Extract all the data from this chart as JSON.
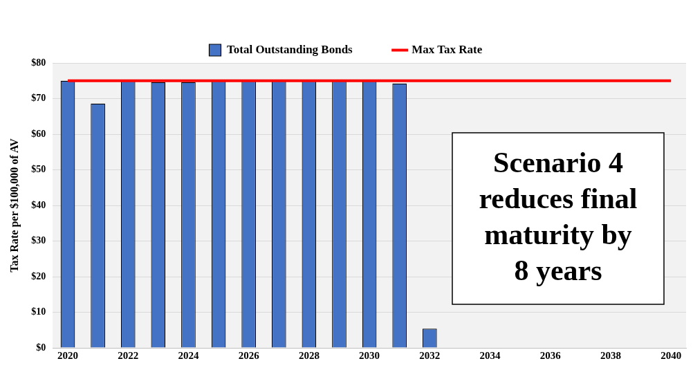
{
  "chart_data": {
    "type": "bar",
    "ylabel": "Tax Rate per $100,000 of AV",
    "categories": [
      "2020",
      null,
      "2022",
      null,
      "2024",
      null,
      "2026",
      null,
      "2028",
      null,
      "2030",
      null,
      "2032",
      null,
      "2034",
      null,
      "2036",
      null,
      "2038",
      null,
      "2040"
    ],
    "series": [
      {
        "name": "Total Outstanding Bonds",
        "color": "#4472c4",
        "values": [
          75,
          68.6,
          74.9,
          74.6,
          74.6,
          74.9,
          74.9,
          74.9,
          74.9,
          74.9,
          74.9,
          74.2,
          5.4,
          null,
          null,
          null,
          null,
          null,
          null,
          null,
          null
        ]
      },
      {
        "name": "Max Tax Rate",
        "type": "line",
        "color": "#ff0000",
        "values": [
          75,
          75,
          75,
          75,
          75,
          75,
          75,
          75,
          75,
          75,
          75,
          75,
          75,
          75,
          75,
          75,
          75,
          75,
          75,
          75,
          75
        ]
      }
    ],
    "ylim": [
      0,
      80
    ],
    "yticks": [
      {
        "value": 0,
        "label": "$0"
      },
      {
        "value": 10,
        "label": "$10"
      },
      {
        "value": 20,
        "label": "$20"
      },
      {
        "value": 30,
        "label": "$30"
      },
      {
        "value": 40,
        "label": "$40"
      },
      {
        "value": 50,
        "label": "$50"
      },
      {
        "value": 60,
        "label": "$60"
      },
      {
        "value": 70,
        "label": "$70"
      },
      {
        "value": 80,
        "label": "$80"
      }
    ],
    "grid": "y",
    "legend": "top",
    "marker": "none",
    "line_style": "solid",
    "annotations": [
      "Scenario 4 reduces final maturity by 8 years"
    ]
  }
}
